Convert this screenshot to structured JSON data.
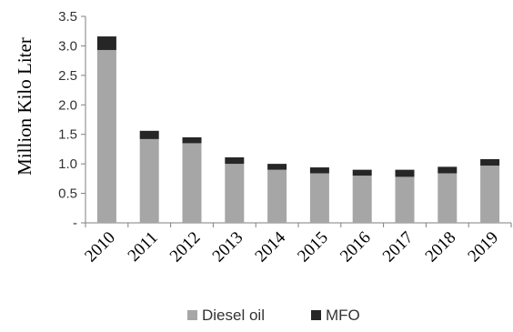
{
  "chart_data": {
    "type": "bar",
    "stacked": true,
    "title": "",
    "xlabel": "",
    "ylabel": "Million Kilo Liter",
    "ylim": [
      0,
      3.5
    ],
    "ytick_values": [
      0,
      0.5,
      1.0,
      1.5,
      2.0,
      2.5,
      3.0,
      3.5
    ],
    "ytick_labels": [
      "-",
      "0.5",
      "1.0",
      "1.5",
      "2.0",
      "2.5",
      "3.0",
      "3.5"
    ],
    "grid": false,
    "legend_position": "bottom",
    "categories": [
      "2010",
      "2011",
      "2012",
      "2013",
      "2014",
      "2015",
      "2016",
      "2017",
      "2018",
      "2019"
    ],
    "series": [
      {
        "name": "Diesel oil",
        "color": "#a6a6a6",
        "values": [
          2.93,
          1.42,
          1.35,
          1.0,
          0.9,
          0.84,
          0.8,
          0.78,
          0.84,
          0.97
        ]
      },
      {
        "name": "MFO",
        "color": "#262626",
        "values": [
          0.23,
          0.14,
          0.1,
          0.11,
          0.1,
          0.1,
          0.1,
          0.12,
          0.11,
          0.11
        ]
      }
    ]
  }
}
